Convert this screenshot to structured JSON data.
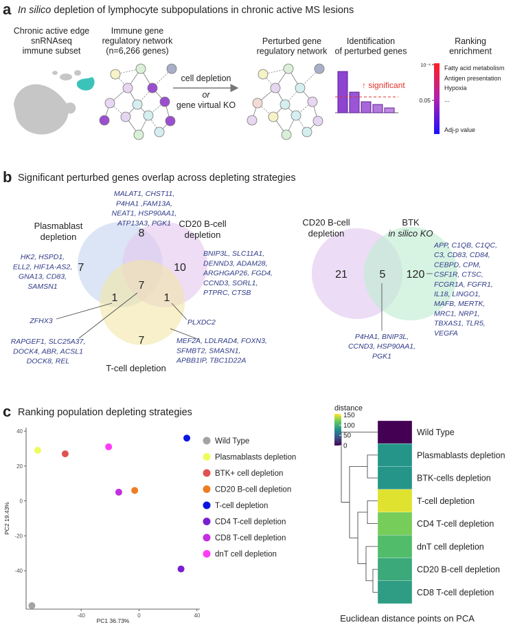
{
  "panel_a": {
    "letter": "a",
    "title": {
      "italic": "In silico",
      "text": "depletion of lymphocyte subpopulations in chronic active MS lesions"
    },
    "steps": [
      [
        "Chronic active edge",
        "snRNAseq",
        "immune subset"
      ],
      [
        "Immune gene",
        "regulatory network",
        "(n=6,266 genes)"
      ],
      [
        "Perturbed gene",
        "regulatory network"
      ],
      [
        "Identification",
        "of perturbed genes"
      ],
      [
        "Ranking",
        "enrichment"
      ]
    ],
    "arrow_label": [
      "cell depletion",
      "or",
      "gene virtual KO"
    ],
    "significance_label": "↑ significant",
    "enrichment": {
      "terms": [
        "Fatty acid metabolism",
        "Antigen presentation",
        "Hypoxia",
        "..."
      ],
      "scale_top": "10⁻⁴",
      "scale_mid": "0.05",
      "scale_label": "Adj-p value"
    }
  },
  "panel_b": {
    "letter": "b",
    "title": "Significant perturbed genes overlap across depleting strategies",
    "venn_1": {
      "sets": [
        [
          "Plasmablast",
          "depletion"
        ],
        [
          "CD20 B-cell",
          "depletion"
        ],
        [
          "T-cell depletion"
        ]
      ],
      "regions": [
        {
          "count": 7,
          "genes": [
            "HK2, HSPD1,",
            "ELL2, HIF1A-AS2,",
            "GNA13, CD83,",
            "SAMSN1"
          ]
        },
        {
          "count": 8,
          "genes": [
            "MALAT1, CHST11,",
            "P4HA1 ,FAM13A,",
            "NEAT1, HSP90AA1,",
            "ATP13A3, PGK1"
          ]
        },
        {
          "count": 10,
          "genes": [
            "BNIP3L, SLC11A1,",
            "DENND3, ADAM28,",
            "ARGHGAP26, FGD4,",
            "CCND3, SORL1,",
            "PTPRC, CTSB"
          ]
        },
        {
          "count": 7,
          "genes": [
            "RAPGEF1, SLC25A37,",
            "DOCK4, ABR, ACSL1",
            "DOCK8, REL"
          ]
        },
        {
          "count": 1,
          "genes": [
            "ZFHX3"
          ]
        },
        {
          "count": 1,
          "genes": [
            "PLXDC2"
          ]
        },
        {
          "count": 7,
          "genes": [
            "MEF2A, LDLRAD4, FOXN3,",
            "SFMBT2, SMASN1,",
            "APBB1IP, TBC1D22A"
          ]
        }
      ]
    },
    "venn_2": {
      "sets": [
        [
          "CD20 B-cell",
          "depletion"
        ],
        [
          "BTK",
          "in silico KO"
        ]
      ],
      "regions": [
        {
          "count": 21
        },
        {
          "count": 5,
          "genes": [
            "P4HA1, BNIP3L,",
            "CCND3, HSP90AA1,",
            "PGK1"
          ]
        },
        {
          "count": 120,
          "genes": [
            "APP, C1QB, C1QC,",
            "C3, CD83, CD84,",
            "CEBPD, CPM,",
            "CSF1R, CTSC,",
            "FCGR1A, FGFR1,",
            "IL18, LINGO1,",
            "MAFB, MERTK,",
            "MRC1, NRP1,",
            "TBXAS1, TLR5,",
            "VEGFA"
          ]
        }
      ]
    }
  },
  "panel_c": {
    "letter": "c",
    "title": "Ranking population depleting strategies"
  },
  "chart_data": [
    {
      "type": "scatter",
      "xlabel": "PC1 36.73%",
      "ylabel": "PC2 19.43%",
      "xlim": [
        -78,
        42
      ],
      "ylim": [
        -62,
        42
      ],
      "xticks": [
        -40,
        0,
        40
      ],
      "yticks": [
        -40,
        -20,
        0,
        20,
        40
      ],
      "grid": false,
      "legend": "right",
      "series": [
        {
          "name": "Wild Type",
          "color": "#a3a3a3",
          "x": [
            -74
          ],
          "values": [
            -60
          ]
        },
        {
          "name": "Plasmablasts depletion",
          "color": "#eefc5a",
          "x": [
            -70
          ],
          "values": [
            29
          ]
        },
        {
          "name": "BTK+ cell depletion",
          "color": "#e05252",
          "x": [
            -51
          ],
          "values": [
            27
          ]
        },
        {
          "name": "CD20 B-cell depletion",
          "color": "#ee7d22",
          "x": [
            -3
          ],
          "values": [
            6
          ]
        },
        {
          "name": "T-cell depletion",
          "color": "#0a14e0",
          "x": [
            33
          ],
          "values": [
            36
          ]
        },
        {
          "name": "CD4 T-cell depletion",
          "color": "#7a1fd0",
          "x": [
            29
          ],
          "values": [
            -39
          ]
        },
        {
          "name": "CD8 T-cell depletion",
          "color": "#c22ee0",
          "x": [
            -14
          ],
          "values": [
            5
          ]
        },
        {
          "name": "dnT cell depletion",
          "color": "#ff3cf5",
          "x": [
            -21
          ],
          "values": [
            31
          ]
        }
      ]
    },
    {
      "type": "heatmap",
      "title": "Euclidean distance points on PCA",
      "categories": [
        "Wild Type",
        "Plasmablasts depletion",
        "BTK-cells depletion",
        "T-cell depletion",
        "CD4 T-cell depletion",
        "dnT cell depletion",
        "CD20 B-cell depletion",
        "CD8 T-cell depletion"
      ],
      "values": [
        0,
        80,
        80,
        148,
        122,
        108,
        94,
        86
      ],
      "colormap": "viridis",
      "colorbar": {
        "label": "distance",
        "lim": [
          0,
          155
        ],
        "ticks": [
          0,
          50,
          100,
          150
        ]
      }
    }
  ]
}
